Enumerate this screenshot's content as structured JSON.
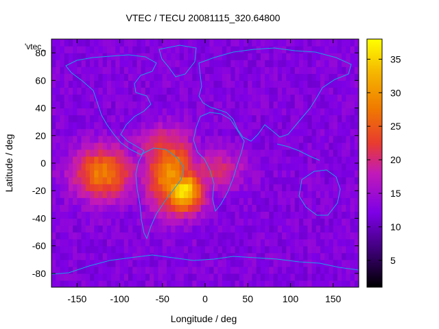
{
  "chart_data": {
    "type": "heatmap",
    "title": "VTEC / TECU 20081115_320.64800",
    "xlabel": "Longitude / deg",
    "ylabel": "Latitude / deg",
    "xlim": [
      -180,
      180
    ],
    "ylim": [
      -90,
      90
    ],
    "xticks": [
      -150,
      -100,
      -50,
      0,
      50,
      100,
      150
    ],
    "yticks": [
      -80,
      -60,
      -40,
      -20,
      0,
      20,
      40,
      60,
      80
    ],
    "legend_label": "'vtec_",
    "colorbar": {
      "min": 1,
      "max": 38,
      "ticks": [
        5,
        10,
        15,
        20,
        25,
        30,
        35
      ],
      "palette": [
        "#000000",
        "#3a0070",
        "#7d00e6",
        "#c21ab8",
        "#e83b30",
        "#f07a00",
        "#f5b400",
        "#ffff00"
      ]
    },
    "grid_step_deg": 5,
    "hotspots": [
      {
        "lon": -120,
        "lat": -7,
        "peak": 28,
        "rlon": 34,
        "rlat": 18
      },
      {
        "lon": -40,
        "lat": -8,
        "peak": 30,
        "rlon": 28,
        "rlat": 26
      },
      {
        "lon": -25,
        "lat": -20,
        "peak": 37,
        "rlon": 22,
        "rlat": 15
      },
      {
        "lon": -50,
        "lat": 13,
        "peak": 22,
        "rlon": 30,
        "rlat": 13
      },
      {
        "lon": 10,
        "lat": -5,
        "peak": 20,
        "rlon": 35,
        "rlat": 14
      }
    ],
    "background_tec": 12,
    "coastline_color": "#1ea0e6"
  }
}
